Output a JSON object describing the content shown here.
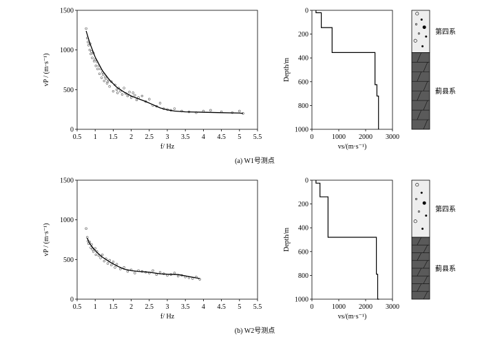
{
  "colors": {
    "ink": "#000000",
    "points": "#555555",
    "quaternary_fill": "#eeeeee",
    "rock_fill": "#5a5a5a",
    "rock_line": "#1a1a1a"
  },
  "chart_data": [
    {
      "id": "w1-dispersion",
      "type": "scatter",
      "xlabel": "f/ Hz",
      "ylabel": "vP / (m·s⁻¹)",
      "xlim": [
        0.5,
        5.5
      ],
      "ylim": [
        0,
        1500
      ],
      "x_ticks": [
        "0.5",
        "1",
        "1.5",
        "2",
        "2.5",
        "3",
        "3.5",
        "4",
        "4.5",
        "5",
        "5.5"
      ],
      "y_ticks": [
        "0",
        "500",
        "1000",
        "1500"
      ],
      "grid": false,
      "curve": {
        "x": [
          0.75,
          0.85,
          1.0,
          1.2,
          1.4,
          1.6,
          1.8,
          2.0,
          2.2,
          2.4,
          2.6,
          2.8,
          3.0,
          3.2,
          3.5,
          4.0,
          4.5,
          5.0,
          5.1
        ],
        "y": [
          1240,
          1090,
          910,
          740,
          620,
          530,
          470,
          420,
          385,
          350,
          310,
          270,
          245,
          230,
          220,
          215,
          210,
          205,
          200
        ]
      },
      "points": {
        "x": [
          0.75,
          0.78,
          0.8,
          0.82,
          0.85,
          0.86,
          0.88,
          0.9,
          0.92,
          0.95,
          0.97,
          1.0,
          1.02,
          1.05,
          1.07,
          1.1,
          1.12,
          1.15,
          1.18,
          1.2,
          1.22,
          1.25,
          1.28,
          1.3,
          1.33,
          1.35,
          1.38,
          1.4,
          1.45,
          1.5,
          1.55,
          1.6,
          1.62,
          1.65,
          1.7,
          1.75,
          1.8,
          1.85,
          1.9,
          1.95,
          2.0,
          2.05,
          2.1,
          2.15,
          2.2,
          2.3,
          2.4,
          2.5,
          2.6,
          2.7,
          2.8,
          2.9,
          3.0,
          3.1,
          3.2,
          3.4,
          3.6,
          3.8,
          4.0,
          4.2,
          4.5,
          4.8,
          5.0,
          5.1
        ],
        "y": [
          1270,
          1150,
          1100,
          1060,
          1000,
          1080,
          950,
          980,
          900,
          960,
          860,
          880,
          800,
          850,
          760,
          800,
          700,
          760,
          650,
          720,
          690,
          610,
          660,
          640,
          580,
          600,
          620,
          540,
          600,
          480,
          560,
          500,
          460,
          520,
          480,
          440,
          520,
          450,
          420,
          470,
          400,
          460,
          430,
          370,
          400,
          420,
          350,
          380,
          300,
          290,
          330,
          260,
          250,
          240,
          260,
          230,
          220,
          210,
          230,
          240,
          220,
          210,
          230,
          200
        ]
      }
    },
    {
      "id": "w1-profile",
      "type": "line",
      "xlabel": "vs/(m·s⁻¹)",
      "ylabel": "Depth/m",
      "xlim": [
        0,
        3000
      ],
      "ylim": [
        0,
        1000
      ],
      "y_inverted": true,
      "x_ticks": [
        "0",
        "1000",
        "2000",
        "3000"
      ],
      "y_ticks": [
        "0",
        "200",
        "400",
        "600",
        "800",
        "1000"
      ],
      "steps": {
        "v": [
          150,
          350,
          750,
          2350,
          2420,
          2480
        ],
        "top": [
          0,
          20,
          145,
          355,
          625,
          720
        ],
        "bottom": [
          20,
          145,
          355,
          625,
          720,
          1000
        ]
      }
    },
    {
      "id": "w2-dispersion",
      "type": "scatter",
      "xlabel": "f/ Hz",
      "ylabel": "vP / (m·s⁻¹)",
      "xlim": [
        0.5,
        5.5
      ],
      "ylim": [
        0,
        1500
      ],
      "x_ticks": [
        "0.5",
        "1",
        "1.5",
        "2",
        "2.5",
        "3",
        "3.5",
        "4",
        "4.5",
        "5",
        "5.5"
      ],
      "y_ticks": [
        "0",
        "500",
        "1000",
        "1500"
      ],
      "grid": false,
      "curve": {
        "x": [
          0.78,
          0.85,
          0.95,
          1.05,
          1.2,
          1.4,
          1.6,
          1.8,
          2.0,
          2.2,
          2.5,
          2.8,
          3.0,
          3.3,
          3.6,
          3.9
        ],
        "y": [
          770,
          700,
          640,
          590,
          530,
          470,
          420,
          380,
          360,
          350,
          340,
          320,
          315,
          310,
          285,
          260
        ]
      },
      "points": {
        "x": [
          0.75,
          0.78,
          0.8,
          0.82,
          0.85,
          0.88,
          0.9,
          0.92,
          0.95,
          1.0,
          1.02,
          1.05,
          1.1,
          1.15,
          1.2,
          1.25,
          1.3,
          1.35,
          1.4,
          1.45,
          1.5,
          1.55,
          1.6,
          1.7,
          1.8,
          1.9,
          2.0,
          2.1,
          2.2,
          2.3,
          2.4,
          2.5,
          2.6,
          2.7,
          2.8,
          2.9,
          3.0,
          3.1,
          3.2,
          3.3,
          3.4,
          3.5,
          3.6,
          3.7,
          3.8,
          3.9
        ],
        "y": [
          890,
          780,
          730,
          700,
          720,
          650,
          690,
          630,
          600,
          640,
          560,
          600,
          550,
          520,
          560,
          480,
          510,
          450,
          490,
          430,
          470,
          400,
          440,
          380,
          400,
          350,
          370,
          330,
          360,
          350,
          340,
          330,
          360,
          310,
          340,
          320,
          300,
          310,
          330,
          290,
          300,
          280,
          270,
          260,
          280,
          250
        ]
      }
    },
    {
      "id": "w2-profile",
      "type": "line",
      "xlabel": "vs/(m·s⁻¹)",
      "ylabel": "Depth/m",
      "xlim": [
        0,
        3000
      ],
      "ylim": [
        0,
        1000
      ],
      "y_inverted": true,
      "x_ticks": [
        "0",
        "1000",
        "2000",
        "3000"
      ],
      "y_ticks": [
        "0",
        "200",
        "400",
        "600",
        "800",
        "1000"
      ],
      "steps": {
        "v": [
          150,
          300,
          600,
          2400,
          2450,
          2500
        ],
        "top": [
          0,
          25,
          140,
          480,
          790,
          1000
        ],
        "bottom": [
          25,
          140,
          480,
          790,
          1000,
          1000
        ]
      }
    }
  ],
  "captions": {
    "w1": "(a) W1号测点",
    "w2": "(b) W2号测点"
  },
  "strata": {
    "w1": {
      "top_label": "第四系",
      "bottom_label": "蓟县系",
      "boundary_depth_m": 355
    },
    "w2": {
      "top_label": "第四系",
      "bottom_label": "蓟县系",
      "boundary_depth_m": 480
    }
  }
}
